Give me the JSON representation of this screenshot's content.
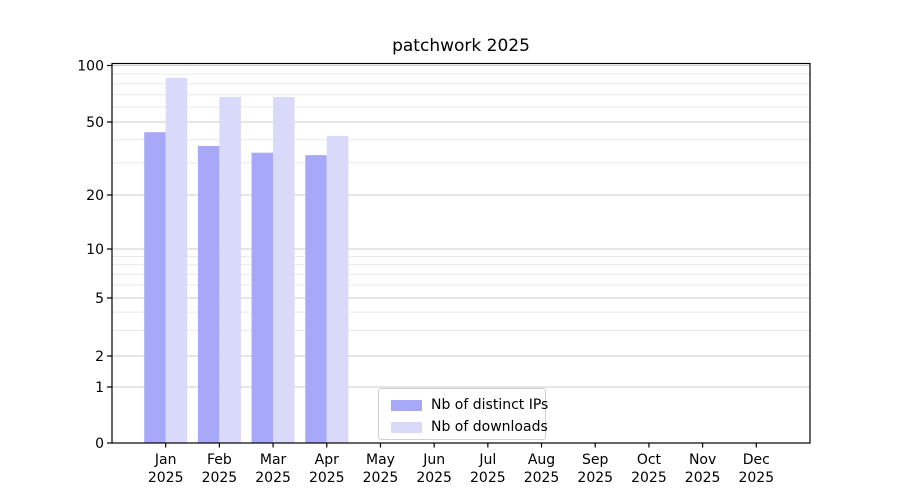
{
  "title": "patchwork 2025",
  "chart_data": {
    "type": "bar",
    "title": "patchwork 2025",
    "categories": [
      "Jan",
      "Feb",
      "Mar",
      "Apr",
      "May",
      "Jun",
      "Jul",
      "Aug",
      "Sep",
      "Oct",
      "Nov",
      "Dec"
    ],
    "year_label": "2025",
    "series": [
      {
        "name": "Nb of distinct IPs",
        "color": "#a8a8f8",
        "values": [
          44,
          37,
          34,
          33,
          null,
          null,
          null,
          null,
          null,
          null,
          null,
          null
        ]
      },
      {
        "name": "Nb of downloads",
        "color": "#d9d9fa",
        "values": [
          86,
          68,
          68,
          42,
          null,
          null,
          null,
          null,
          null,
          null,
          null,
          null
        ]
      }
    ],
    "y_axis": {
      "scale": "symlog-like",
      "ticks": [
        0,
        1,
        2,
        5,
        10,
        20,
        50,
        100
      ],
      "minor_ticks": [
        3,
        4,
        6,
        7,
        8,
        9,
        30,
        40,
        60,
        70,
        80,
        90
      ],
      "min": 0,
      "max": 100
    },
    "grid": "both",
    "legend_position": "lower-center-inside"
  },
  "colors": {
    "bar_distinct_ips": "#a8a8f8",
    "bar_downloads": "#d9d9fa",
    "grid_major": "#cccccc",
    "grid_minor": "#e9e9e9",
    "axis": "#000000",
    "text": "#000000"
  }
}
